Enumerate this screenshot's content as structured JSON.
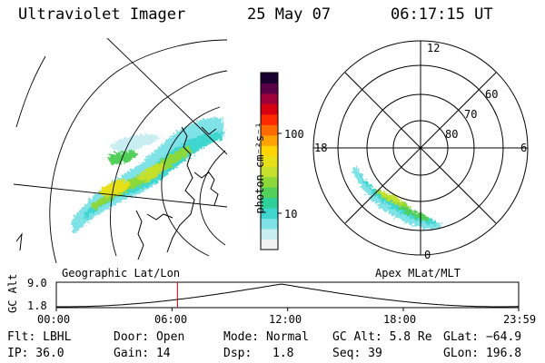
{
  "header": {
    "instrument": "Ultraviolet Imager",
    "date": "25 May 07",
    "time": "06:17:15 UT"
  },
  "colorbar": {
    "unit_label": "photon cm⁻²s⁻¹",
    "ticks": [
      {
        "label": "100",
        "value": 100
      },
      {
        "label": "10",
        "value": 10
      }
    ],
    "colors": [
      "#f2f2f2",
      "#c8eef2",
      "#7fe2e6",
      "#3fd6d0",
      "#2fcf9a",
      "#52d05a",
      "#8cd83a",
      "#c4e02c",
      "#e8e018",
      "#ffd400",
      "#ffa200",
      "#ff6a00",
      "#ff2a00",
      "#d80010",
      "#a0003a",
      "#5a0048",
      "#1a0030"
    ]
  },
  "geo_panel": {
    "label": "Geographic Lat/Lon"
  },
  "polar_panel": {
    "label": "Apex MLat/MLT",
    "mlt_labels": {
      "top": "12",
      "left": "18",
      "right": "6",
      "bottom": "0"
    },
    "lat_labels": [
      "60",
      "70",
      "80"
    ]
  },
  "altitude_plot": {
    "ylabel": "GC Alt",
    "y_ticks": [
      "9.0",
      "1.8"
    ],
    "x_ticks": [
      "00:00",
      "06:00",
      "12:00",
      "18:00",
      "23:59"
    ],
    "marker_time": "06:17",
    "marker_color": "#d00000"
  },
  "info": {
    "filter": "Flt: LBHL",
    "ip": "IP: 36.0",
    "door": "Door: Open",
    "gain": "Gain: 14",
    "mode": "Mode: Normal",
    "dsp_label": "Dsp:",
    "dsp_value": "1.8",
    "gc_alt": "GC Alt: 5.8 Re",
    "seq": "Seq: 39",
    "glat": "GLat: −64.9",
    "glon": "GLon: 196.8"
  }
}
